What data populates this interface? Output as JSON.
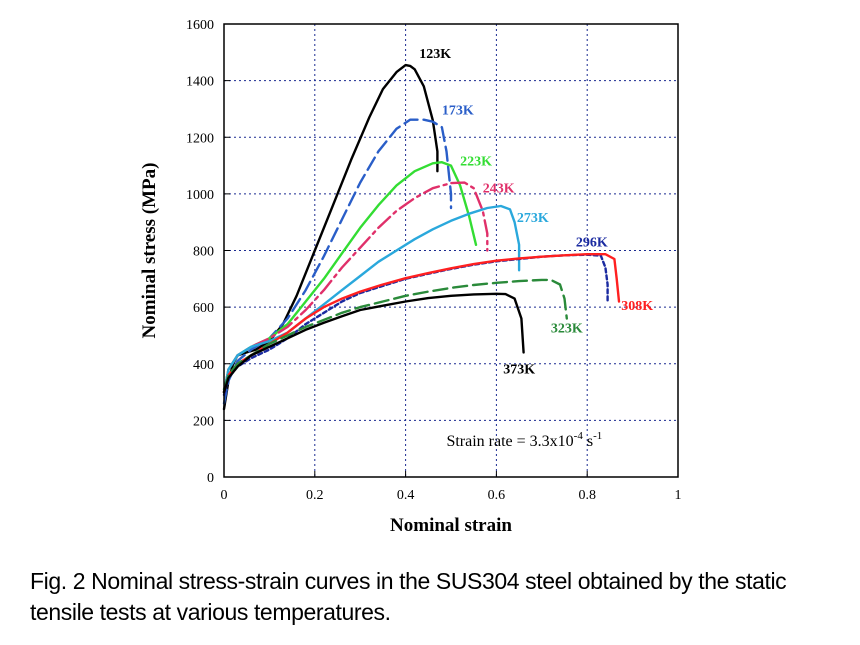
{
  "caption": "Fig. 2  Nominal stress-strain curves in the SUS304 steel obtained by the static tensile tests at various temperatures.",
  "chart_data": {
    "type": "line",
    "title": "",
    "xlabel": "Nominal strain",
    "ylabel": "Nominal stress (MPa)",
    "xlim": [
      0,
      1
    ],
    "ylim": [
      0,
      1600
    ],
    "xticks": [
      0,
      0.2,
      0.4,
      0.6,
      0.8,
      1
    ],
    "xtick_labels": [
      "0",
      "0.2",
      "0.4",
      "0.6",
      "0.8",
      "1"
    ],
    "yticks": [
      0,
      200,
      400,
      600,
      800,
      1000,
      1200,
      1400,
      1600
    ],
    "ytick_labels": [
      "0",
      "200",
      "400",
      "600",
      "800",
      "1000",
      "1200",
      "1400",
      "1600"
    ],
    "grid": true,
    "annotation": {
      "prefix": "Strain rate = 3.3x10",
      "exp1": "-4",
      "mid": " s",
      "exp2": "-1",
      "x": 0.49,
      "y": 110
    },
    "series": [
      {
        "name": "123K",
        "color": "#000000",
        "dash": "",
        "label_x": 0.43,
        "label_y": 1480,
        "points": [
          [
            0,
            240
          ],
          [
            0.01,
            340
          ],
          [
            0.02,
            400
          ],
          [
            0.03,
            430
          ],
          [
            0.05,
            440
          ],
          [
            0.07,
            450
          ],
          [
            0.1,
            480
          ],
          [
            0.13,
            540
          ],
          [
            0.16,
            640
          ],
          [
            0.2,
            800
          ],
          [
            0.24,
            960
          ],
          [
            0.28,
            1120
          ],
          [
            0.32,
            1270
          ],
          [
            0.35,
            1370
          ],
          [
            0.38,
            1430
          ],
          [
            0.4,
            1455
          ],
          [
            0.41,
            1452
          ],
          [
            0.42,
            1440
          ],
          [
            0.44,
            1380
          ],
          [
            0.46,
            1260
          ],
          [
            0.47,
            1150
          ],
          [
            0.47,
            1080
          ]
        ]
      },
      {
        "name": "173K",
        "color": "#2a5ec8",
        "dash": "14,6",
        "label_x": 0.48,
        "label_y": 1280,
        "points": [
          [
            0,
            260
          ],
          [
            0.01,
            340
          ],
          [
            0.03,
            410
          ],
          [
            0.06,
            450
          ],
          [
            0.1,
            490
          ],
          [
            0.14,
            560
          ],
          [
            0.18,
            660
          ],
          [
            0.22,
            780
          ],
          [
            0.26,
            910
          ],
          [
            0.3,
            1040
          ],
          [
            0.34,
            1150
          ],
          [
            0.38,
            1230
          ],
          [
            0.41,
            1262
          ],
          [
            0.44,
            1262
          ],
          [
            0.46,
            1255
          ],
          [
            0.48,
            1235
          ],
          [
            0.49,
            1150
          ],
          [
            0.5,
            1000
          ],
          [
            0.5,
            950
          ]
        ]
      },
      {
        "name": "223K",
        "color": "#33dd33",
        "dash": "",
        "label_x": 0.52,
        "label_y": 1100,
        "points": [
          [
            0,
            300
          ],
          [
            0.01,
            380
          ],
          [
            0.03,
            430
          ],
          [
            0.06,
            460
          ],
          [
            0.1,
            490
          ],
          [
            0.14,
            540
          ],
          [
            0.18,
            620
          ],
          [
            0.22,
            700
          ],
          [
            0.26,
            790
          ],
          [
            0.3,
            880
          ],
          [
            0.34,
            960
          ],
          [
            0.38,
            1030
          ],
          [
            0.42,
            1080
          ],
          [
            0.46,
            1108
          ],
          [
            0.48,
            1112
          ],
          [
            0.5,
            1100
          ],
          [
            0.52,
            1030
          ],
          [
            0.54,
            920
          ],
          [
            0.555,
            820
          ]
        ]
      },
      {
        "name": "243K",
        "color": "#e0306a",
        "dash": "16,5,3,5",
        "label_x": 0.57,
        "label_y": 1005,
        "points": [
          [
            0,
            300
          ],
          [
            0.01,
            380
          ],
          [
            0.03,
            430
          ],
          [
            0.06,
            460
          ],
          [
            0.1,
            490
          ],
          [
            0.14,
            530
          ],
          [
            0.18,
            590
          ],
          [
            0.22,
            660
          ],
          [
            0.26,
            740
          ],
          [
            0.3,
            810
          ],
          [
            0.34,
            880
          ],
          [
            0.38,
            940
          ],
          [
            0.42,
            985
          ],
          [
            0.46,
            1020
          ],
          [
            0.5,
            1038
          ],
          [
            0.53,
            1040
          ],
          [
            0.55,
            1020
          ],
          [
            0.57,
            940
          ],
          [
            0.58,
            860
          ],
          [
            0.58,
            800
          ]
        ]
      },
      {
        "name": "273K",
        "color": "#2aa8dc",
        "dash": "",
        "label_x": 0.645,
        "label_y": 900,
        "points": [
          [
            0,
            300
          ],
          [
            0.01,
            380
          ],
          [
            0.03,
            430
          ],
          [
            0.06,
            460
          ],
          [
            0.1,
            480
          ],
          [
            0.14,
            510
          ],
          [
            0.18,
            560
          ],
          [
            0.22,
            610
          ],
          [
            0.26,
            660
          ],
          [
            0.3,
            710
          ],
          [
            0.34,
            760
          ],
          [
            0.38,
            800
          ],
          [
            0.42,
            840
          ],
          [
            0.46,
            875
          ],
          [
            0.5,
            905
          ],
          [
            0.54,
            930
          ],
          [
            0.58,
            950
          ],
          [
            0.61,
            957
          ],
          [
            0.63,
            945
          ],
          [
            0.64,
            900
          ],
          [
            0.65,
            820
          ],
          [
            0.65,
            730
          ]
        ]
      },
      {
        "name": "296K",
        "color": "#1a2aa0",
        "dash": "4,3",
        "label_x": 0.775,
        "label_y": 815,
        "points": [
          [
            0,
            290
          ],
          [
            0.01,
            350
          ],
          [
            0.03,
            390
          ],
          [
            0.06,
            420
          ],
          [
            0.1,
            450
          ],
          [
            0.14,
            490
          ],
          [
            0.18,
            540
          ],
          [
            0.22,
            580
          ],
          [
            0.26,
            620
          ],
          [
            0.3,
            650
          ],
          [
            0.35,
            675
          ],
          [
            0.4,
            700
          ],
          [
            0.45,
            718
          ],
          [
            0.5,
            735
          ],
          [
            0.55,
            750
          ],
          [
            0.6,
            762
          ],
          [
            0.65,
            770
          ],
          [
            0.7,
            778
          ],
          [
            0.75,
            783
          ],
          [
            0.8,
            785
          ],
          [
            0.83,
            782
          ],
          [
            0.84,
            740
          ],
          [
            0.845,
            680
          ],
          [
            0.845,
            620
          ]
        ]
      },
      {
        "name": "308K",
        "color": "#ff2020",
        "dash": "",
        "label_x": 0.875,
        "label_y": 590,
        "points": [
          [
            0,
            300
          ],
          [
            0.01,
            360
          ],
          [
            0.03,
            400
          ],
          [
            0.06,
            430
          ],
          [
            0.1,
            470
          ],
          [
            0.14,
            510
          ],
          [
            0.18,
            560
          ],
          [
            0.22,
            600
          ],
          [
            0.26,
            630
          ],
          [
            0.3,
            655
          ],
          [
            0.35,
            680
          ],
          [
            0.4,
            702
          ],
          [
            0.45,
            720
          ],
          [
            0.5,
            737
          ],
          [
            0.55,
            752
          ],
          [
            0.6,
            764
          ],
          [
            0.65,
            772
          ],
          [
            0.7,
            778
          ],
          [
            0.75,
            783
          ],
          [
            0.8,
            787
          ],
          [
            0.84,
            787
          ],
          [
            0.86,
            770
          ],
          [
            0.865,
            700
          ],
          [
            0.87,
            620
          ]
        ]
      },
      {
        "name": "323K",
        "color": "#2a8a3a",
        "dash": "14,6",
        "label_x": 0.72,
        "label_y": 510,
        "points": [
          [
            0,
            310
          ],
          [
            0.01,
            360
          ],
          [
            0.03,
            400
          ],
          [
            0.06,
            430
          ],
          [
            0.1,
            470
          ],
          [
            0.14,
            500
          ],
          [
            0.18,
            530
          ],
          [
            0.22,
            555
          ],
          [
            0.26,
            580
          ],
          [
            0.3,
            600
          ],
          [
            0.35,
            620
          ],
          [
            0.4,
            640
          ],
          [
            0.45,
            655
          ],
          [
            0.5,
            668
          ],
          [
            0.55,
            678
          ],
          [
            0.6,
            686
          ],
          [
            0.65,
            692
          ],
          [
            0.7,
            696
          ],
          [
            0.72,
            696
          ],
          [
            0.74,
            680
          ],
          [
            0.75,
            630
          ],
          [
            0.755,
            560
          ]
        ]
      },
      {
        "name": "373K",
        "color": "#000000",
        "dash": "",
        "label_x": 0.615,
        "label_y": 365,
        "points": [
          [
            0,
            300
          ],
          [
            0.01,
            350
          ],
          [
            0.03,
            390
          ],
          [
            0.06,
            430
          ],
          [
            0.1,
            460
          ],
          [
            0.14,
            490
          ],
          [
            0.18,
            520
          ],
          [
            0.22,
            545
          ],
          [
            0.26,
            568
          ],
          [
            0.3,
            590
          ],
          [
            0.35,
            605
          ],
          [
            0.4,
            620
          ],
          [
            0.45,
            632
          ],
          [
            0.5,
            640
          ],
          [
            0.55,
            645
          ],
          [
            0.6,
            647
          ],
          [
            0.62,
            646
          ],
          [
            0.64,
            630
          ],
          [
            0.655,
            560
          ],
          [
            0.66,
            440
          ]
        ]
      }
    ]
  }
}
